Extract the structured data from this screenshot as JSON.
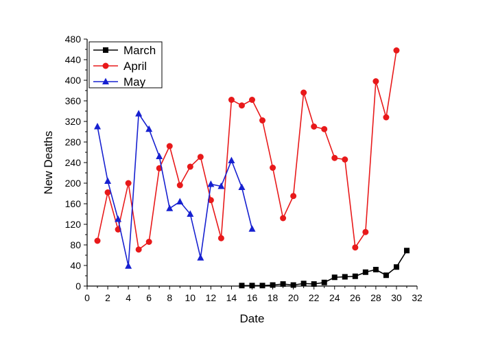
{
  "chart_data": {
    "type": "line",
    "title": "",
    "xlabel": "Date",
    "ylabel": "New Deaths",
    "xlim": [
      0,
      32
    ],
    "ylim": [
      0,
      480
    ],
    "x_ticks": [
      "0",
      "2",
      "4",
      "6",
      "8",
      "10",
      "12",
      "14",
      "16",
      "18",
      "20",
      "22",
      "24",
      "26",
      "28",
      "30",
      "32"
    ],
    "y_ticks": [
      "0",
      "40",
      "80",
      "120",
      "160",
      "200",
      "240",
      "280",
      "320",
      "360",
      "400",
      "440",
      "480"
    ],
    "grid": false,
    "legend_position": "top-left",
    "series": [
      {
        "name": "March",
        "color": "#000000",
        "marker": "square",
        "x": [
          15,
          16,
          17,
          18,
          19,
          20,
          21,
          22,
          23,
          24,
          25,
          26,
          27,
          28,
          29,
          30,
          31
        ],
        "values": [
          1,
          1,
          1,
          2,
          4,
          2,
          5,
          4,
          7,
          17,
          18,
          19,
          27,
          32,
          21,
          37,
          69
        ]
      },
      {
        "name": "April",
        "color": "#e8191a",
        "marker": "circle",
        "x": [
          1,
          2,
          3,
          4,
          5,
          6,
          7,
          8,
          9,
          10,
          11,
          12,
          13,
          14,
          15,
          16,
          17,
          18,
          19,
          20,
          21,
          22,
          23,
          24,
          25,
          26,
          27,
          28,
          29,
          30
        ],
        "values": [
          88,
          182,
          110,
          200,
          71,
          86,
          229,
          272,
          196,
          232,
          251,
          167,
          93,
          362,
          351,
          362,
          322,
          230,
          132,
          175,
          376,
          310,
          305,
          249,
          246,
          75,
          105,
          398,
          328,
          458
        ]
      },
      {
        "name": "May",
        "color": "#1620d0",
        "marker": "triangle",
        "x": [
          1,
          2,
          3,
          4,
          5,
          6,
          7,
          8,
          9,
          10,
          11,
          12,
          13,
          14,
          15,
          16
        ],
        "values": [
          310,
          204,
          130,
          39,
          335,
          305,
          252,
          151,
          164,
          140,
          55,
          198,
          194,
          244,
          192,
          111
        ]
      }
    ]
  }
}
